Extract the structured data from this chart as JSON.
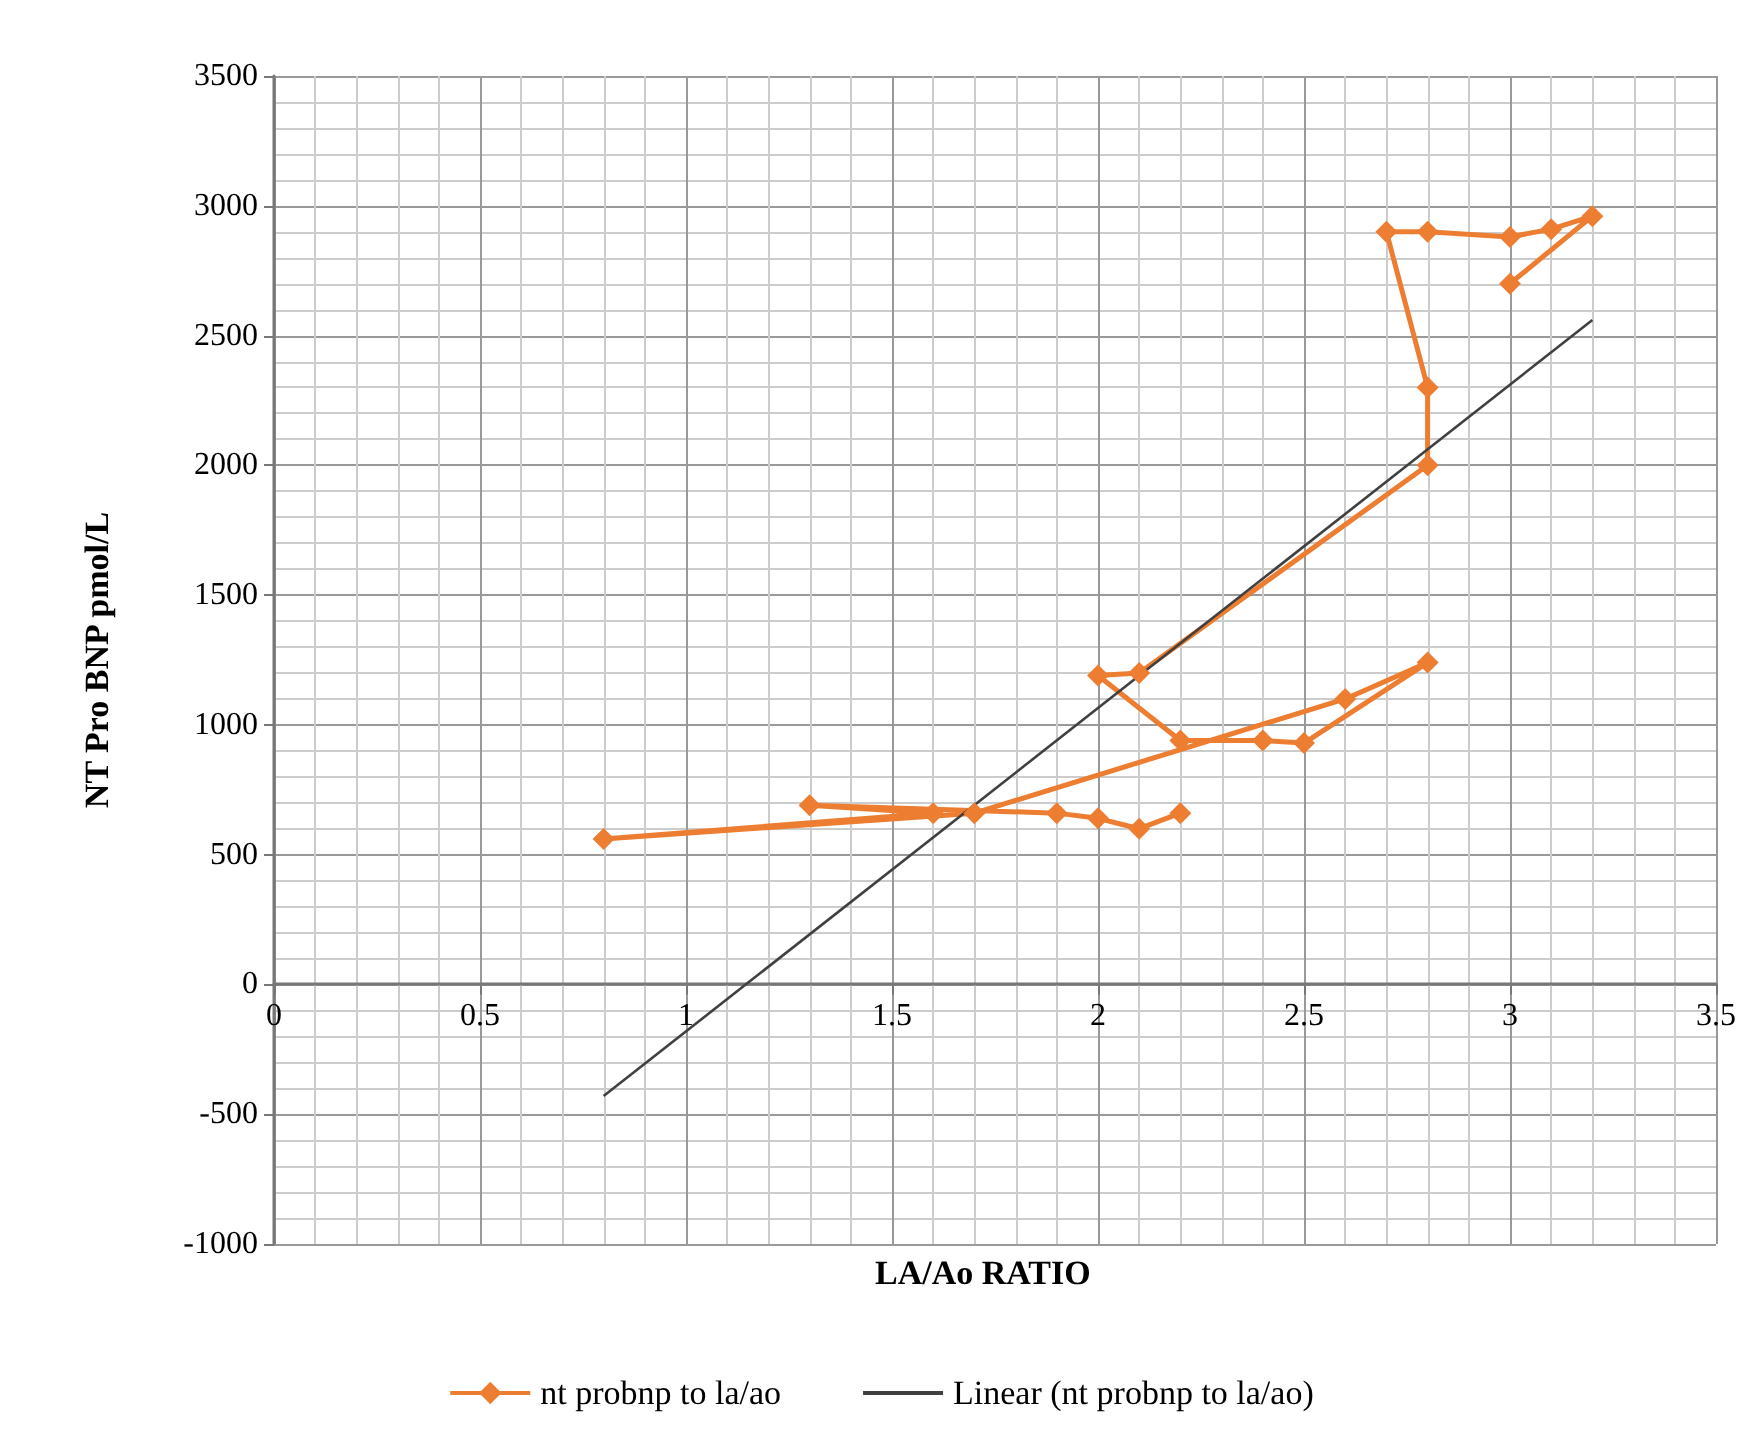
{
  "chart_data": {
    "type": "line",
    "xlabel": "LA/Ao RATIO",
    "ylabel": "NT Pro BNP pmol/L",
    "xlim": [
      0,
      3.5
    ],
    "xticks": [
      0,
      0.5,
      1,
      1.5,
      2,
      2.5,
      3,
      3.5
    ],
    "ylim": [
      -1000,
      3500
    ],
    "yticks": [
      -1000,
      -500,
      0,
      500,
      1000,
      1500,
      2000,
      2500,
      3000,
      3500
    ],
    "grid": true,
    "legend": "bottom",
    "series": [
      {
        "name": "nt probnp to la/ao",
        "color": "#ed7d31",
        "marker": "diamond",
        "x": [
          2.2,
          2.1,
          2.0,
          1.9,
          1.3,
          1.6,
          0.8,
          1.7,
          2.6,
          2.8,
          2.5,
          2.4,
          2.2,
          2.0,
          2.1,
          2.8,
          2.8,
          2.7,
          2.8,
          3.0,
          3.1,
          3.2,
          3.0
        ],
        "values": [
          660,
          600,
          640,
          660,
          690,
          660,
          560,
          660,
          1100,
          1240,
          930,
          940,
          940,
          1190,
          1200,
          2000,
          2300,
          2900,
          2900,
          2880,
          2910,
          2960,
          2700
        ]
      },
      {
        "name": "Linear (nt probnp to la/ao)",
        "color": "#404040",
        "marker": "none",
        "x": [
          0.8,
          3.2
        ],
        "values": [
          -430,
          2560
        ]
      }
    ]
  }
}
